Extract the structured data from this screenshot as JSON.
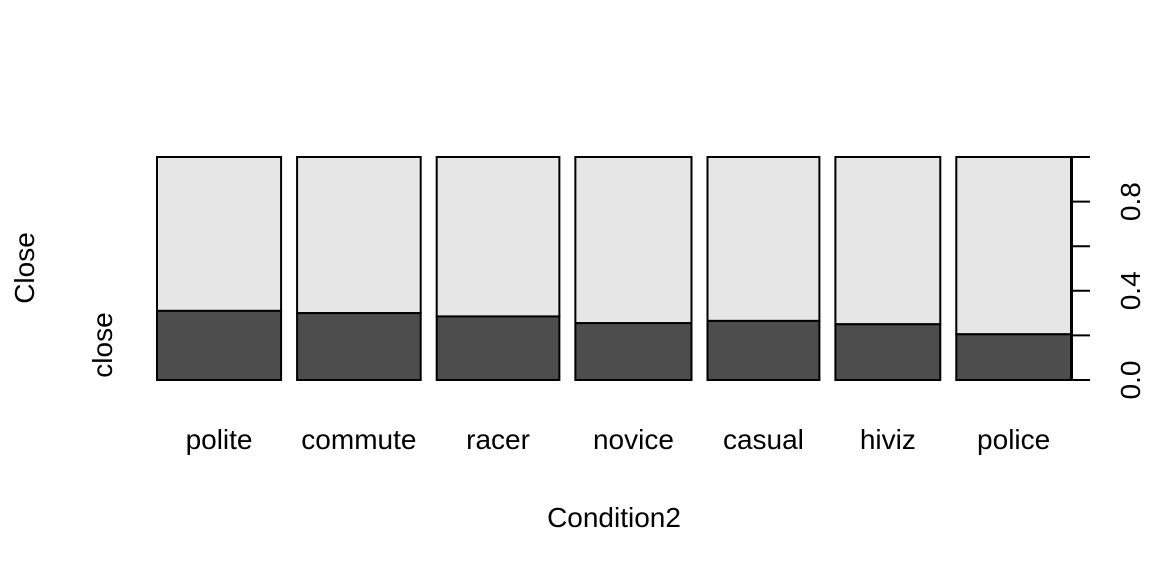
{
  "chart_data": {
    "type": "bar",
    "subtype": "spineplot",
    "xlabel": "Condition2",
    "ylabel": "Close",
    "level_label": "close",
    "categories": [
      "polite",
      "commute",
      "racer",
      "novice",
      "casual",
      "hiviz",
      "police"
    ],
    "widths": [
      0.1325,
      0.132,
      0.131,
      0.124,
      0.1195,
      0.112,
      0.1225
    ],
    "series": [
      {
        "name": "close",
        "values": [
          0.31,
          0.3,
          0.285,
          0.255,
          0.265,
          0.25,
          0.205
        ]
      }
    ],
    "ylim": [
      0,
      1
    ],
    "yticks": [
      "0.0",
      "0.4",
      "0.8"
    ],
    "grid": false,
    "colors": {
      "close": "#4d4d4d",
      "remainder": "#e6e6e6",
      "outline": "#000000"
    }
  }
}
